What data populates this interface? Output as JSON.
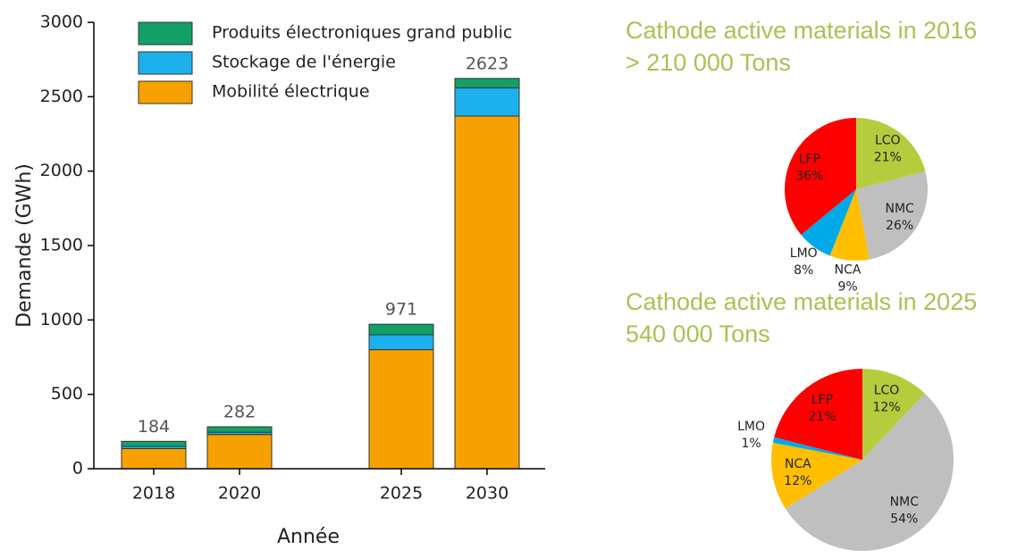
{
  "chart_data": [
    {
      "type": "stacked-bar",
      "categories": [
        "2018",
        "2020",
        "2025",
        "2030"
      ],
      "series": [
        {
          "name": "Mobilité électrique",
          "color": "#f7a100",
          "values": [
            135,
            230,
            800,
            2370
          ]
        },
        {
          "name": "Stockage de l'énergie",
          "color": "#1cb1ec",
          "values": [
            15,
            15,
            100,
            190
          ]
        },
        {
          "name": "Produits électroniques grand public",
          "color": "#13a066",
          "values": [
            34,
            37,
            71,
            63
          ]
        }
      ],
      "totals": [
        184,
        282,
        971,
        2623
      ],
      "xlabel": "Année",
      "ylabel": "Demande (GWh)",
      "ylim": [
        0,
        3000
      ],
      "yticks": [
        0,
        500,
        1000,
        1500,
        2000,
        2500,
        3000
      ]
    },
    {
      "type": "pie",
      "title": [
        "Cathode active materials in 2016",
        "> 210 000 Tons"
      ],
      "categories": [
        "LCO",
        "NMC",
        "NCA",
        "LMO",
        "LFP"
      ],
      "values": [
        21,
        26,
        9,
        8,
        36
      ],
      "value_labels": [
        "21%",
        "26%",
        "9%",
        "8%",
        "36%"
      ],
      "colors": [
        "#b6cc3c",
        "#bfbfbf",
        "#ffbf00",
        "#00a9e8",
        "#ff0000"
      ]
    },
    {
      "type": "pie",
      "title": [
        "Cathode active materials in 2025",
        "540 000 Tons"
      ],
      "categories": [
        "LCO",
        "NMC",
        "NCA",
        "LMO",
        "LFP"
      ],
      "values": [
        12,
        54,
        12,
        1,
        21
      ],
      "value_labels": [
        "12%",
        "54%",
        "12%",
        "1%",
        "21%"
      ],
      "colors": [
        "#b6cc3c",
        "#bfbfbf",
        "#ffbf00",
        "#00a9e8",
        "#ff0000"
      ]
    }
  ]
}
